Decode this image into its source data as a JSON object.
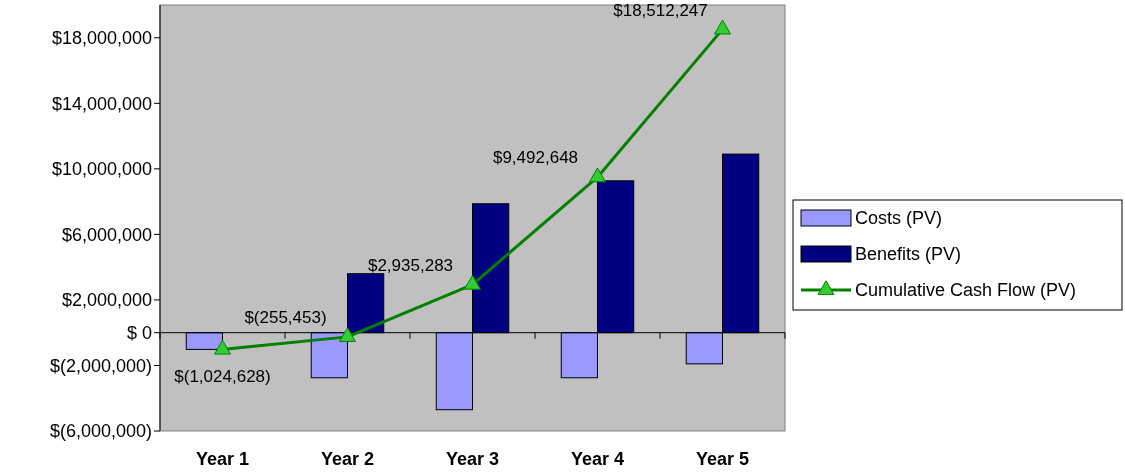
{
  "chart_data": {
    "type": "bar",
    "categories": [
      "Year 1",
      "Year 2",
      "Year 3",
      "Year 4",
      "Year 5"
    ],
    "series": [
      {
        "name": "Costs (PV)",
        "color": "#9999ff",
        "values": [
          -1020000,
          -2750000,
          -4700000,
          -2750000,
          -1900000
        ]
      },
      {
        "name": "Benefits (PV)",
        "color": "#000080",
        "values": [
          0,
          3600000,
          7870000,
          9270000,
          10900000
        ]
      },
      {
        "name": "Cumulative Cash Flow (PV)",
        "type": "line",
        "color": "#008000",
        "values": [
          -1024628,
          -255453,
          2935283,
          9492648,
          18512247
        ],
        "value_labels": [
          "$(1,024,628)",
          "$(255,453)",
          "$2,935,283",
          "$9,492,648",
          "$18,512,247"
        ],
        "marker": "triangle",
        "line_style": "solid"
      }
    ],
    "ylim": [
      -6000000,
      20000000
    ],
    "yticks": [
      {
        "value": -6000000,
        "label": "$(6,000,000)"
      },
      {
        "value": -2000000,
        "label": "$(2,000,000)"
      },
      {
        "value": 0,
        "label": "$ 0"
      },
      {
        "value": 2000000,
        "label": "$2,000,000"
      },
      {
        "value": 6000000,
        "label": "$6,000,000"
      },
      {
        "value": 10000000,
        "label": "$10,000,000"
      },
      {
        "value": 14000000,
        "label": "$14,000,000"
      },
      {
        "value": 18000000,
        "label": "$18,000,000"
      }
    ],
    "legend": "right"
  }
}
